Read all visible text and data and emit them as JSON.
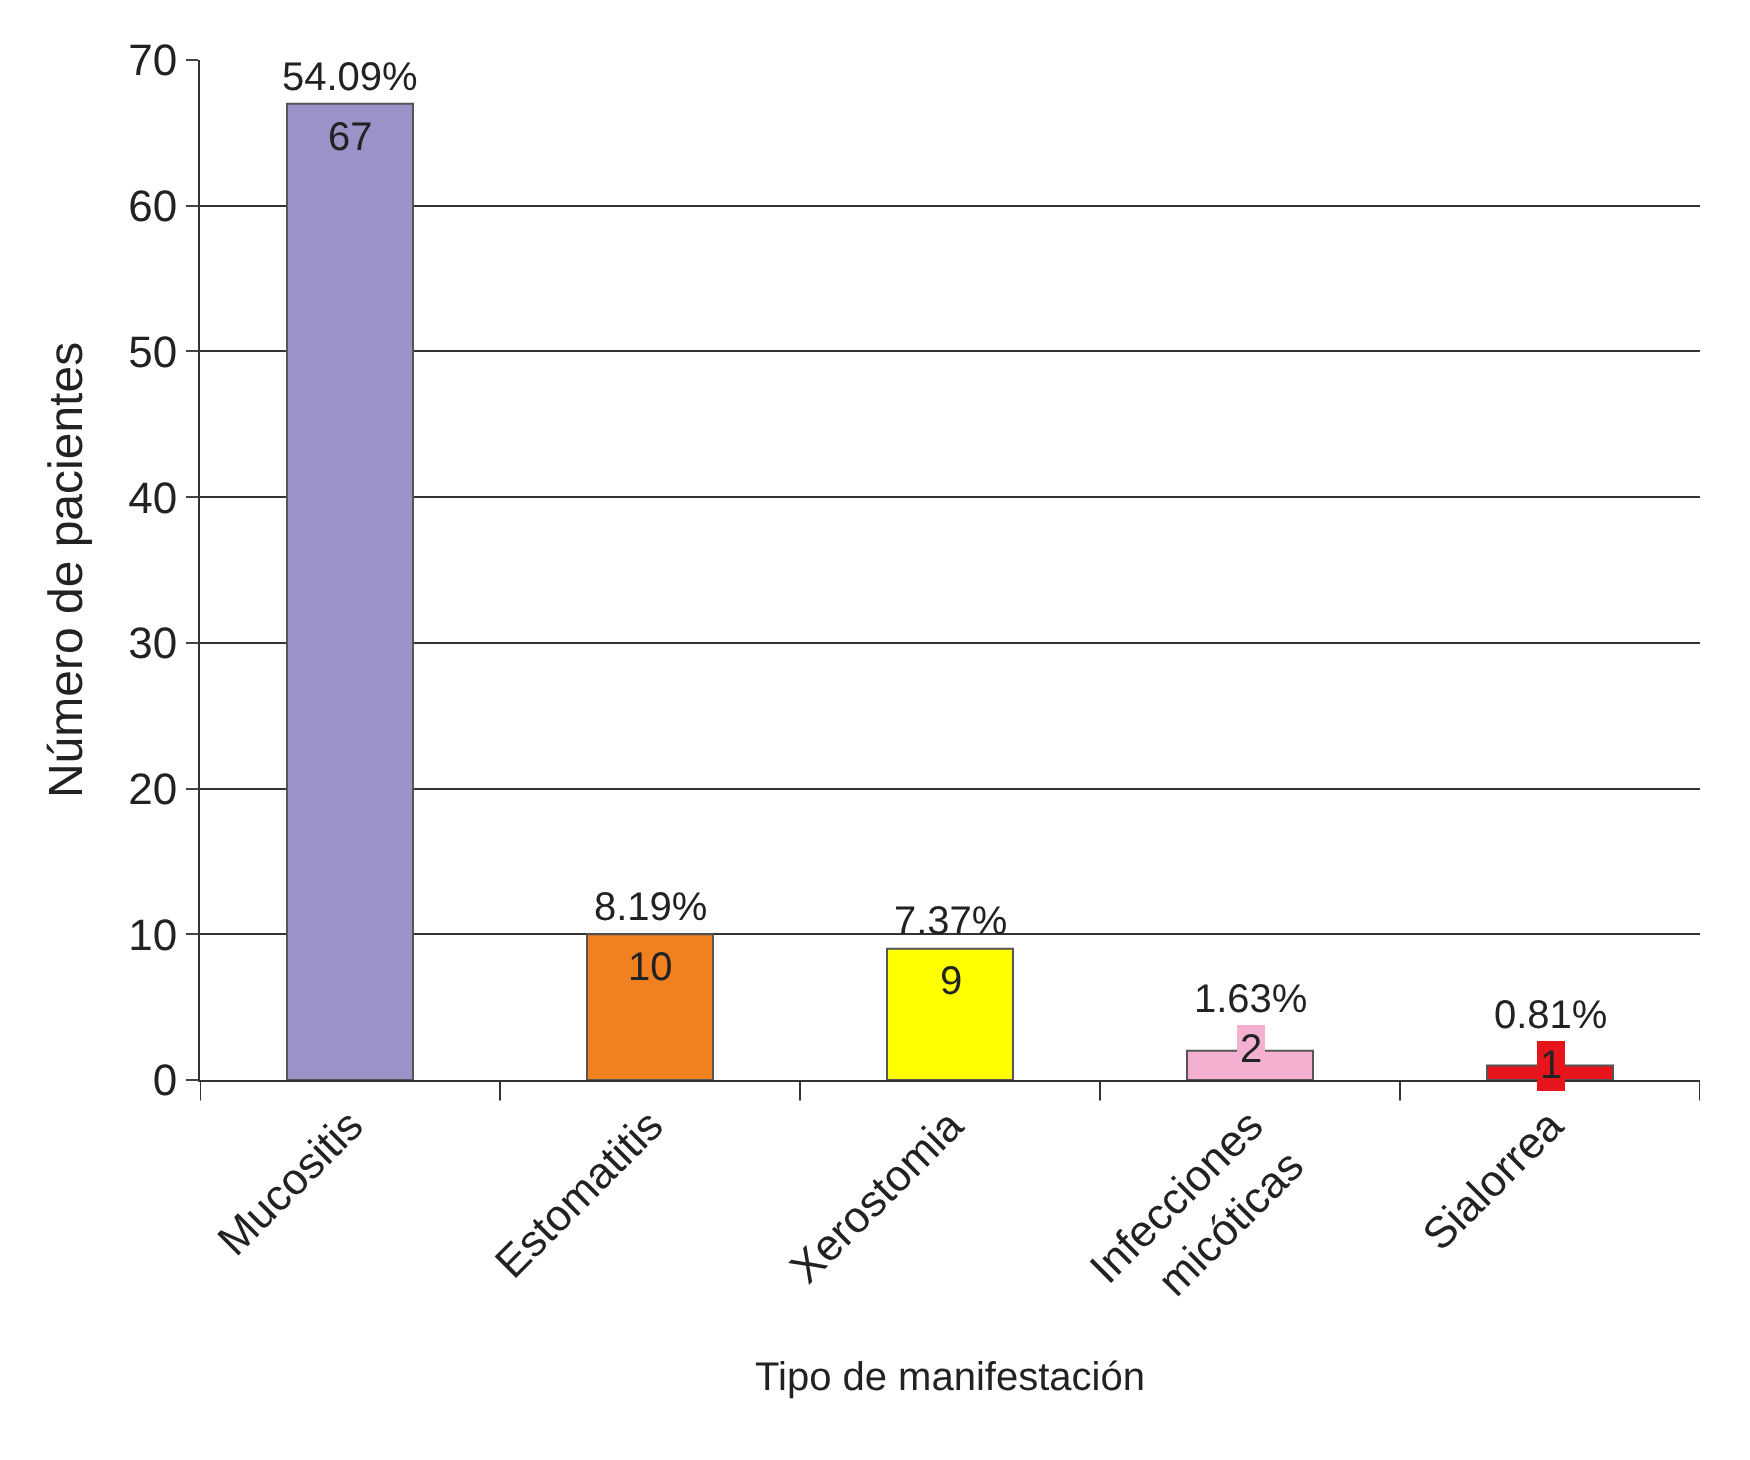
{
  "chart_data": {
    "type": "bar",
    "xlabel": "Tipo de manifestación",
    "ylabel": "Número de pacientes",
    "categories": [
      "Mucositis",
      "Estomatitis",
      "Xerostomia",
      "Infecciones\nmicóticas",
      "Sialorrea"
    ],
    "values": [
      67,
      10,
      9,
      2,
      1
    ],
    "colors": [
      "#9b93c8",
      "#f08020",
      "#ffff00",
      "#f4b0d0",
      "#e8141c"
    ],
    "value_labels": [
      "67",
      "10",
      "9",
      "2",
      "1"
    ],
    "annotations": [
      {
        "text": "54.09%",
        "x": "Mucositis",
        "y": 67
      },
      {
        "text": "8.19%",
        "x": "Estomatitis",
        "y": 10
      },
      {
        "text": "7.37%",
        "x": "Xerostomia",
        "y": 9
      },
      {
        "text": "1.63%",
        "x": "Infecciones\nmicóticas",
        "y": 2
      },
      {
        "text": "0.81%",
        "x": "Sialorrea",
        "y": 1
      }
    ],
    "ylim": [
      0,
      70
    ],
    "yticks": [
      0,
      10,
      20,
      30,
      40,
      50,
      60,
      70
    ],
    "grid": "y",
    "legend": false
  }
}
